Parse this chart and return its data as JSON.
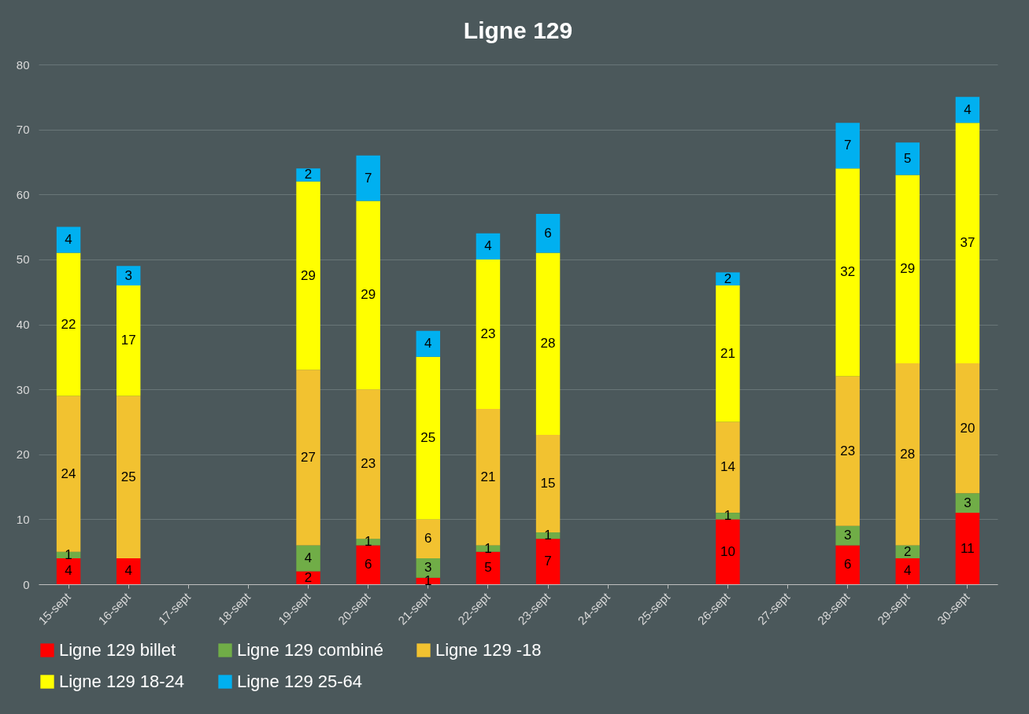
{
  "chart_data": {
    "type": "bar",
    "title": "Ligne 129",
    "stacked": true,
    "data_labels": true,
    "grid": "y",
    "legend": "bottom",
    "categories": [
      "15-sept",
      "16-sept",
      "17-sept",
      "18-sept",
      "19-sept",
      "20-sept",
      "21-sept",
      "22-sept",
      "23-sept",
      "24-sept",
      "25-sept",
      "26-sept",
      "27-sept",
      "28-sept",
      "29-sept",
      "30-sept"
    ],
    "ylim": [
      0,
      80
    ],
    "yticks": [
      0,
      10,
      20,
      30,
      40,
      50,
      60,
      70,
      80
    ],
    "series": [
      {
        "name": "Ligne 129 billet",
        "color": "#ff0000",
        "values": [
          4,
          4,
          null,
          null,
          2,
          6,
          1,
          5,
          7,
          null,
          null,
          10,
          null,
          6,
          4,
          11
        ]
      },
      {
        "name": "Ligne 129 combiné",
        "color": "#70ad47",
        "values": [
          1,
          null,
          null,
          null,
          4,
          1,
          3,
          1,
          1,
          null,
          null,
          1,
          null,
          3,
          2,
          3
        ]
      },
      {
        "name": "Ligne 129 -18",
        "color": "#f2c230",
        "values": [
          24,
          25,
          null,
          null,
          27,
          23,
          6,
          21,
          15,
          null,
          null,
          14,
          null,
          23,
          28,
          20
        ]
      },
      {
        "name": "Ligne 129 18-24",
        "color": "#ffff00",
        "values": [
          22,
          17,
          null,
          null,
          29,
          29,
          25,
          23,
          28,
          null,
          null,
          21,
          null,
          32,
          29,
          37
        ]
      },
      {
        "name": "Ligne 129 25-64",
        "color": "#00b0f0",
        "values": [
          4,
          3,
          null,
          null,
          2,
          7,
          4,
          4,
          6,
          null,
          null,
          2,
          null,
          7,
          5,
          4
        ]
      }
    ]
  }
}
